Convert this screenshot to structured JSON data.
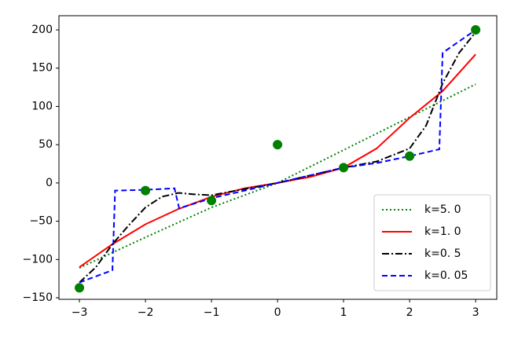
{
  "chart_data": {
    "type": "line",
    "xlim": [
      -3.31,
      3.32
    ],
    "ylim": [
      -152,
      218.5
    ],
    "xticks": [
      {
        "value": -3,
        "label": "−3"
      },
      {
        "value": -2,
        "label": "−2"
      },
      {
        "value": -1,
        "label": "−1"
      },
      0,
      1,
      2,
      3
    ],
    "yticks": [
      {
        "value": -150,
        "label": "−150"
      },
      {
        "value": -100,
        "label": "−100"
      },
      {
        "value": -50,
        "label": "−50"
      },
      0,
      50,
      100,
      150,
      200
    ],
    "legend": "lower right",
    "points": {
      "color": "#008000",
      "x": [
        -3,
        -2,
        -1,
        0,
        1,
        2,
        3
      ],
      "values": [
        -137,
        -10,
        -23,
        50,
        20,
        35,
        200
      ]
    },
    "series": [
      {
        "name": "k=5. 0",
        "color": "#008000",
        "style": "dotted",
        "x": [
          -3,
          -2,
          -1,
          0,
          1,
          2,
          3
        ],
        "values": [
          -111,
          -71,
          -32,
          0,
          43,
          86,
          129
        ]
      },
      {
        "name": "k=1. 0",
        "color": "#ff0000",
        "style": "solid",
        "x": [
          -3,
          -2.5,
          -2,
          -1.5,
          -1,
          -0.5,
          0,
          0.5,
          1,
          1.5,
          2,
          2.5,
          3
        ],
        "values": [
          -110,
          -80,
          -54,
          -34,
          -18,
          -7,
          0,
          8,
          20,
          45,
          85,
          120,
          168
        ]
      },
      {
        "name": "k=0. 5",
        "color": "#000000",
        "style": "dashdot",
        "x": [
          -3,
          -2.75,
          -2.5,
          -2.25,
          -2,
          -1.75,
          -1.5,
          -1.25,
          -1,
          -0.5,
          0,
          0.5,
          1,
          1.5,
          2,
          2.25,
          2.5,
          2.75,
          3
        ],
        "values": [
          -130,
          -110,
          -80,
          -55,
          -32,
          -18,
          -13,
          -15,
          -16,
          -8,
          0,
          10,
          20,
          28,
          45,
          75,
          130,
          170,
          197
        ]
      },
      {
        "name": "k=0. 05",
        "color": "#0000ff",
        "style": "dashed",
        "x": [
          -3,
          -2.5,
          -2.46,
          -2,
          -1.56,
          -1.49,
          -1,
          0,
          1,
          1.5,
          2,
          2.45,
          2.5,
          3
        ],
        "values": [
          -130,
          -114,
          -10,
          -9,
          -7,
          -33,
          -20,
          0,
          20,
          26,
          35,
          44,
          170,
          200
        ]
      }
    ]
  }
}
